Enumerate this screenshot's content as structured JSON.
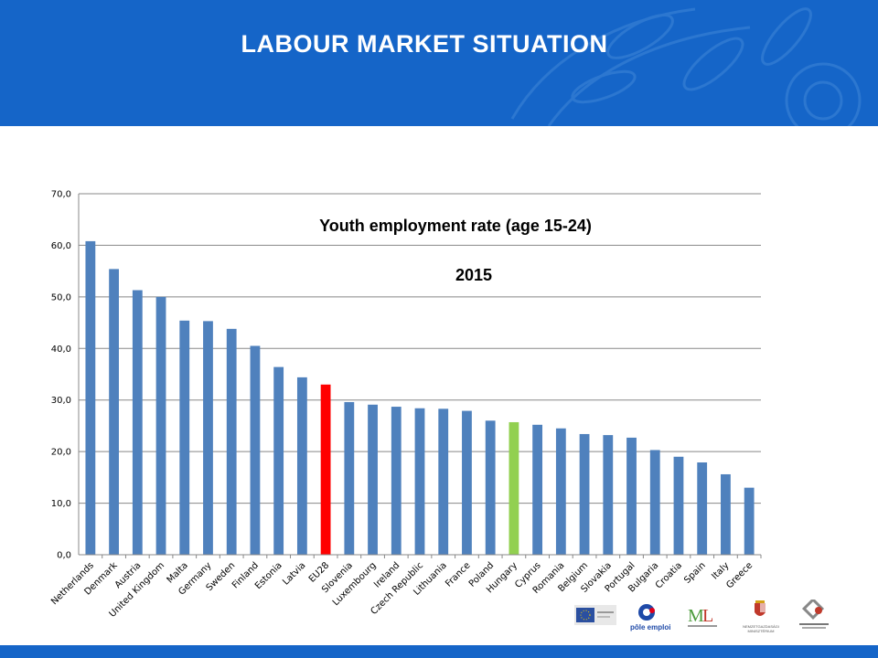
{
  "slide": {
    "title": "LABOUR MARKET SITUATION"
  },
  "colors": {
    "header": "#1565c8",
    "bar_default": "#4f81bd",
    "bar_eu28": "#ff0000",
    "bar_hungary": "#92d050"
  },
  "logos": {
    "pole_emploi": "pôle emploi",
    "ministry": "NEMZETGAZDASÁGI MINISZTÉRIUM"
  },
  "chart_data": {
    "type": "bar",
    "title": "Youth employment rate (age 15-24)",
    "subtitle": "2015",
    "xlabel": "",
    "ylabel": "",
    "ylim": [
      0,
      70
    ],
    "yticks": [
      "0,0",
      "10,0",
      "20,0",
      "30,0",
      "40,0",
      "50,0",
      "60,0",
      "70,0"
    ],
    "grid": true,
    "categories": [
      "Netherlands",
      "Denmark",
      "Austria",
      "United Kingdom",
      "Malta",
      "Germany",
      "Sweden",
      "Finland",
      "Estonia",
      "Latvia",
      "EU28",
      "Slovenia",
      "Luxembourg",
      "Ireland",
      "Czech Republic",
      "Lithuania",
      "France",
      "Poland",
      "Hungary",
      "Cyprus",
      "Romania",
      "Belgium",
      "Slovakia",
      "Portugal",
      "Bulgaria",
      "Croatia",
      "Spain",
      "Italy",
      "Greece"
    ],
    "values": [
      60.8,
      55.4,
      51.3,
      50.0,
      45.4,
      45.3,
      43.8,
      40.5,
      36.4,
      34.4,
      33.0,
      29.6,
      29.1,
      28.7,
      28.4,
      28.3,
      27.9,
      26.0,
      25.7,
      25.2,
      24.5,
      23.4,
      23.2,
      22.7,
      20.3,
      19.0,
      17.9,
      15.6,
      13.0
    ],
    "highlight": {
      "EU28": "#ff0000",
      "Hungary": "#92d050"
    }
  }
}
